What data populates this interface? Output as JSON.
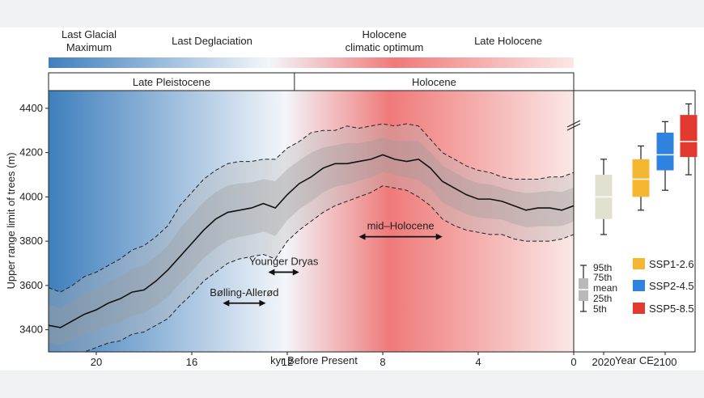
{
  "chart_data": [
    {
      "type": "line",
      "period_labels": [
        {
          "text": "Last Glacial",
          "text2": "Maximum"
        },
        {
          "text": "Last Deglaciation",
          "text2": ""
        },
        {
          "text": "Holocene",
          "text2": "climatic optimum"
        },
        {
          "text": "Late Holocene",
          "text2": ""
        }
      ],
      "epochs": [
        "Late Pleistocene",
        "Holocene"
      ],
      "xlabel": "kyr Before Present",
      "ylabel": "Upper range limit of trees (m)",
      "x_ticks": [
        20,
        16,
        12,
        8,
        4,
        0
      ],
      "y_ticks": [
        3400,
        3600,
        3800,
        4000,
        4200,
        4400
      ],
      "xlim": [
        22,
        0
      ],
      "ylim": [
        3300,
        4480
      ],
      "epoch_boundary_kyr": 11.7,
      "series": [
        {
          "x": [
            22,
            21.5,
            21,
            20.5,
            20,
            19.5,
            19,
            18.5,
            18,
            17.5,
            17,
            16.5,
            16,
            15.5,
            15,
            14.5,
            14,
            13.5,
            13,
            12.5,
            12,
            11.5,
            11,
            10.5,
            10,
            9.5,
            9,
            8.5,
            8,
            7.5,
            7,
            6.5,
            6,
            5.5,
            5,
            4.5,
            4,
            3.5,
            3,
            2.5,
            2,
            1.5,
            1,
            0.5,
            0
          ],
          "mean": [
            3420,
            3410,
            3440,
            3470,
            3490,
            3520,
            3540,
            3570,
            3580,
            3620,
            3670,
            3730,
            3790,
            3850,
            3900,
            3930,
            3940,
            3950,
            3970,
            3950,
            4010,
            4060,
            4090,
            4130,
            4150,
            4150,
            4160,
            4170,
            4190,
            4170,
            4160,
            4170,
            4130,
            4070,
            4040,
            4010,
            3990,
            3990,
            3980,
            3960,
            3940,
            3950,
            3950,
            3940,
            3960
          ],
          "upper95": [
            3590,
            3570,
            3600,
            3640,
            3660,
            3690,
            3720,
            3760,
            3780,
            3820,
            3870,
            3960,
            4020,
            4080,
            4120,
            4150,
            4160,
            4160,
            4170,
            4170,
            4220,
            4250,
            4290,
            4300,
            4300,
            4320,
            4310,
            4320,
            4330,
            4320,
            4330,
            4320,
            4260,
            4200,
            4170,
            4140,
            4120,
            4110,
            4090,
            4080,
            4080,
            4080,
            4090,
            4090,
            4110
          ],
          "lower5": [
            3280,
            3270,
            3280,
            3300,
            3320,
            3340,
            3350,
            3380,
            3390,
            3420,
            3450,
            3510,
            3560,
            3620,
            3660,
            3700,
            3720,
            3730,
            3740,
            3720,
            3800,
            3850,
            3890,
            3930,
            3960,
            3980,
            4000,
            4020,
            4050,
            4040,
            4030,
            4000,
            3960,
            3900,
            3870,
            3850,
            3840,
            3830,
            3830,
            3810,
            3800,
            3800,
            3800,
            3810,
            3830
          ]
        }
      ],
      "annotations": [
        {
          "text": "mid–Holocene",
          "from": 9,
          "to": 5.5,
          "y": 3820
        },
        {
          "text": "Younger Dryas",
          "from": 12.8,
          "to": 11.5,
          "y": 3660
        },
        {
          "text": "Bølling-Allerød",
          "from": 14.7,
          "to": 12.9,
          "y": 3520
        }
      ],
      "gradient_colors": [
        "#3f7fbd",
        "#f3f6fa",
        "#f07a7a",
        "#fae8e6"
      ]
    },
    {
      "type": "box",
      "xlabel": "Year CE",
      "x_ticks": [
        "2020",
        "2100"
      ],
      "legend_labels": [
        "95th",
        "75th",
        "mean",
        "25th",
        "5th"
      ],
      "boxes": [
        {
          "group": "2020",
          "color": "#e2e1d0",
          "p5": 3830,
          "p25": 3900,
          "mean": 4000,
          "p75": 4100,
          "p95": 4170
        },
        {
          "group": "SSP1-2.6",
          "color": "#f5b731",
          "p5": 3940,
          "p25": 4000,
          "mean": 4080,
          "p75": 4170,
          "p95": 4230
        },
        {
          "group": "SSP2-4.5",
          "color": "#2f82df",
          "p5": 4030,
          "p25": 4120,
          "mean": 4190,
          "p75": 4290,
          "p95": 4340
        },
        {
          "group": "SSP5-8.5",
          "color": "#e23a2e",
          "p5": 4100,
          "p25": 4180,
          "mean": 4250,
          "p75": 4370,
          "p95": 4420
        }
      ],
      "legend": [
        {
          "label": "SSP1-2.6",
          "color": "#f5b731"
        },
        {
          "label": "SSP2-4.5",
          "color": "#2f82df"
        },
        {
          "label": "SSP5-8.5",
          "color": "#e23a2e"
        }
      ]
    }
  ]
}
